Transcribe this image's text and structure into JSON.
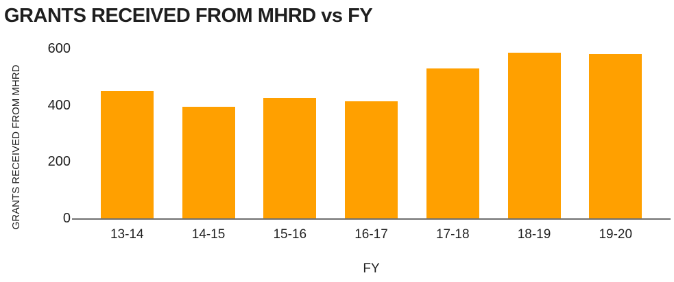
{
  "colors": {
    "bar": "#FFA000",
    "axis_line": "#6F6F6F",
    "text": "#1F1F1F",
    "background": "#FFFFFF"
  },
  "chart_data": {
    "type": "bar",
    "title": "GRANTS RECEIVED FROM MHRD vs FY",
    "xlabel": "FY",
    "ylabel": "GRANTS RECEIVED FROM MHRD",
    "categories": [
      "13-14",
      "14-15",
      "15-16",
      "16-17",
      "17-18",
      "18-19",
      "19-20"
    ],
    "values": [
      450,
      395,
      425,
      413,
      530,
      585,
      580
    ],
    "yticks": [
      0,
      200,
      400,
      600
    ],
    "ylim": [
      0,
      600
    ],
    "bar_color": "#FFA000",
    "grid": false,
    "legend": false,
    "legend_position": "none"
  }
}
